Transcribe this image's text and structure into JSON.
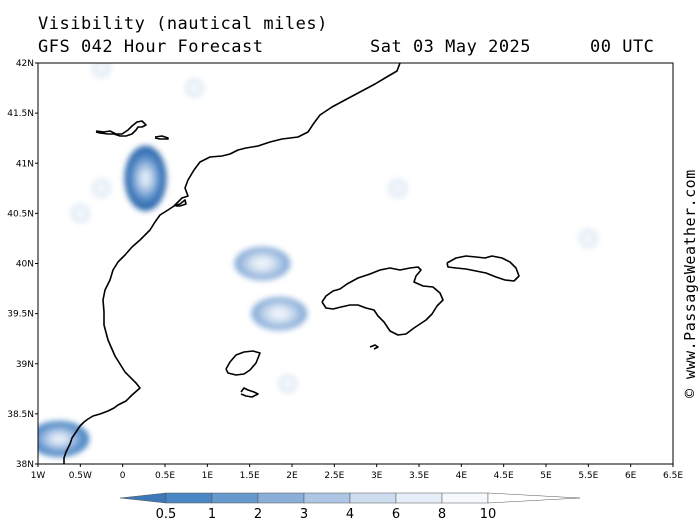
{
  "header": {
    "title": "Visibility (nautical miles)",
    "subtitle": "GFS 042 Hour Forecast",
    "date": "Sat 03 May 2025",
    "time": "00 UTC"
  },
  "copyright": "© www.PassageWeather.com",
  "map": {
    "lon_range": [
      -1,
      6.5
    ],
    "lat_range": [
      38,
      42
    ],
    "lat_ticks": [
      "42N",
      "41.5N",
      "41N",
      "40.5N",
      "40N",
      "39.5N",
      "39N",
      "38.5N",
      "38N"
    ],
    "lon_ticks": [
      "1W",
      "0.5W",
      "0",
      "0.5E",
      "1E",
      "1.5E",
      "2E",
      "2.5E",
      "3E",
      "3.5E",
      "4E",
      "4.5E",
      "5E",
      "5.5E",
      "6E",
      "6.5E"
    ],
    "visibility_blobs": [
      {
        "lon": 0.27,
        "lat": 40.85,
        "level": 0.5
      },
      {
        "lon": -0.75,
        "lat": 38.25,
        "level": 1
      },
      {
        "lon": 1.65,
        "lat": 40.0,
        "level": 3
      },
      {
        "lon": 1.85,
        "lat": 39.5,
        "level": 3
      },
      {
        "lon": 1.95,
        "lat": 38.8,
        "level": 8
      },
      {
        "lon": 0.85,
        "lat": 41.75,
        "level": 8
      },
      {
        "lon": 3.25,
        "lat": 40.75,
        "level": 8
      },
      {
        "lon": 5.5,
        "lat": 40.25,
        "level": 8
      },
      {
        "lon": -0.25,
        "lat": 40.75,
        "level": 8
      },
      {
        "lon": -0.5,
        "lat": 40.5,
        "level": 8
      },
      {
        "lon": -0.25,
        "lat": 41.95,
        "level": 8
      }
    ]
  },
  "legend": {
    "labels": [
      "0.5",
      "1",
      "2",
      "3",
      "4",
      "6",
      "8",
      "10"
    ],
    "colors": [
      "#3f78b8",
      "#4a86c4",
      "#6699cc",
      "#8aaed8",
      "#adc6e4",
      "#cddcef",
      "#e6eef8",
      "#f5f8fc",
      "#ffffff"
    ]
  }
}
